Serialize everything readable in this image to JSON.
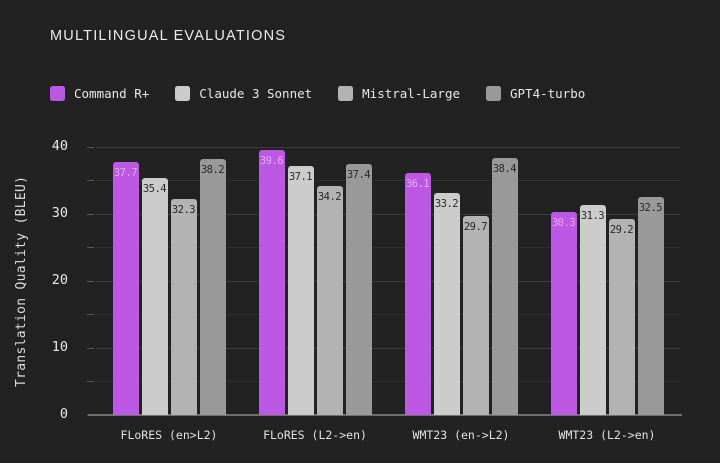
{
  "title": "MULTILINGUAL EVALUATIONS",
  "colors": {
    "background": "#222222",
    "grid_major": "#3d3d3d",
    "grid_minor": "#2f2f2f",
    "baseline": "#6f6f6f",
    "text": "#ececec",
    "value_label_on_accent": "#e2aef0",
    "value_label_on_gray": "#282828"
  },
  "legend": [
    {
      "label": "Command R+",
      "color": "#bc58e3"
    },
    {
      "label": "Claude 3 Sonnet",
      "color": "#cccccc"
    },
    {
      "label": "Mistral-Large",
      "color": "#b3b3b3"
    },
    {
      "label": "GPT4-turbo",
      "color": "#999999"
    }
  ],
  "chart_data": {
    "type": "bar",
    "title": "MULTILINGUAL EVALUATIONS",
    "xlabel": "",
    "ylabel": "Translation Quality (BLEU)",
    "ylim": [
      0,
      40
    ],
    "yticks": [
      0,
      10,
      20,
      30,
      40
    ],
    "minor_grid_step": 5,
    "grid": true,
    "legend_position": "top",
    "categories": [
      "FLoRES (en>L2)",
      "FLoRES (L2->en)",
      "WMT23 (en->L2)",
      "WMT23 (L2->en)"
    ],
    "series": [
      {
        "name": "Command R+",
        "color": "#bc58e3",
        "values": [
          37.7,
          39.6,
          36.1,
          30.3
        ]
      },
      {
        "name": "Claude 3 Sonnet",
        "color": "#cccccc",
        "values": [
          35.4,
          37.1,
          33.2,
          31.3
        ]
      },
      {
        "name": "Mistral-Large",
        "color": "#b3b3b3",
        "values": [
          32.3,
          34.2,
          29.7,
          29.2
        ]
      },
      {
        "name": "GPT4-turbo",
        "color": "#999999",
        "values": [
          38.2,
          37.4,
          38.4,
          32.5
        ]
      }
    ]
  }
}
